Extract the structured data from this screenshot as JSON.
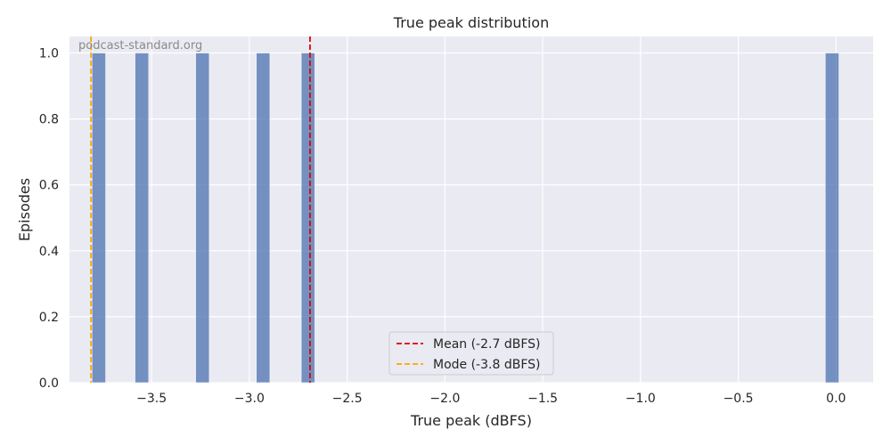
{
  "chart_data": {
    "type": "bar",
    "title": "True peak distribution",
    "xlabel": "True peak (dBFS)",
    "ylabel": "Episodes",
    "xlim": [
      -3.92,
      0.19
    ],
    "ylim": [
      0,
      1.05
    ],
    "x_ticks": [
      -3.5,
      -3.0,
      -2.5,
      -2.0,
      -1.5,
      -1.0,
      -0.5,
      0.0
    ],
    "x_tick_labels": [
      "−3.5",
      "−3.0",
      "−2.5",
      "−2.0",
      "−1.5",
      "−1.0",
      "−0.5",
      "0.0"
    ],
    "y_ticks": [
      0.0,
      0.2,
      0.4,
      0.6,
      0.8,
      1.0
    ],
    "y_tick_labels": [
      "0.0",
      "0.2",
      "0.4",
      "0.6",
      "0.8",
      "1.0"
    ],
    "grid": true,
    "bar_width": 0.07,
    "bins": [
      {
        "x": -3.77,
        "count": 1
      },
      {
        "x": -3.55,
        "count": 1
      },
      {
        "x": -3.24,
        "count": 1
      },
      {
        "x": -2.93,
        "count": 1
      },
      {
        "x": -2.7,
        "count": 1
      },
      {
        "x": -0.02,
        "count": 1
      }
    ],
    "reference_lines": [
      {
        "name": "Mean (-2.7 dBFS)",
        "x": -2.69,
        "color": "#e00000"
      },
      {
        "name": "Mode (-3.8 dBFS)",
        "x": -3.81,
        "color": "#ffa500"
      }
    ],
    "legend_position": "bottom-center",
    "watermark": "podcast-standard.org",
    "colors": {
      "bar": "#4c72b0",
      "plot_background": "#eaeaf2",
      "grid": "#ffffff"
    }
  }
}
